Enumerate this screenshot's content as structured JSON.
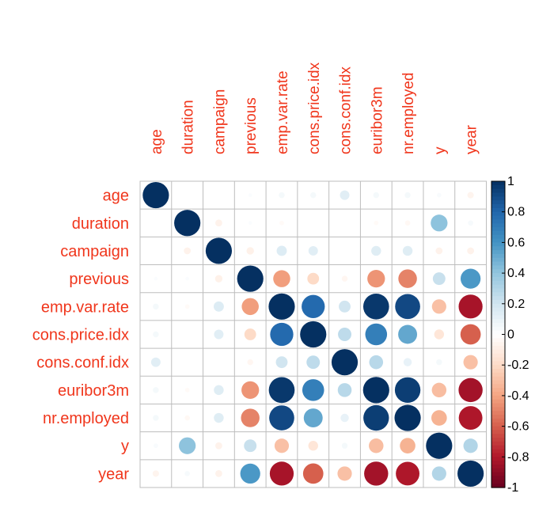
{
  "colors": {
    "label": "#f0361c",
    "grid": "#bdbdbd",
    "frame": "#000000",
    "scale": [
      "#67001f",
      "#b2182b",
      "#d6604d",
      "#f4a582",
      "#fddbc7",
      "#ffffff",
      "#d1e5f0",
      "#92c5de",
      "#4393c3",
      "#2166ac",
      "#053061"
    ]
  },
  "chart_data": {
    "type": "heatmap",
    "style": "circle correlation matrix",
    "variables": [
      "age",
      "duration",
      "campaign",
      "previous",
      "emp.var.rate",
      "cons.price.idx",
      "cons.conf.idx",
      "euribor3m",
      "nr.employed",
      "y",
      "year"
    ],
    "matrix": [
      [
        1.0,
        0.0,
        0.0,
        0.02,
        0.05,
        0.05,
        0.13,
        0.05,
        0.05,
        0.03,
        -0.06
      ],
      [
        0.0,
        1.0,
        -0.07,
        0.02,
        -0.03,
        0.0,
        0.0,
        -0.03,
        -0.04,
        0.41,
        0.04
      ],
      [
        0.0,
        -0.07,
        1.0,
        -0.08,
        0.15,
        0.13,
        0.0,
        0.14,
        0.14,
        -0.07,
        -0.07
      ],
      [
        0.02,
        0.02,
        -0.08,
        1.0,
        -0.42,
        -0.2,
        -0.05,
        -0.45,
        -0.5,
        0.23,
        0.58
      ],
      [
        0.05,
        -0.03,
        0.15,
        -0.42,
        1.0,
        0.78,
        0.2,
        0.97,
        0.91,
        -0.3,
        -0.83
      ],
      [
        0.05,
        0.0,
        0.13,
        -0.2,
        0.78,
        1.0,
        0.26,
        0.69,
        0.52,
        -0.14,
        -0.6
      ],
      [
        0.13,
        0.0,
        0.0,
        -0.05,
        0.2,
        0.26,
        1.0,
        0.28,
        0.1,
        0.05,
        -0.3
      ],
      [
        0.05,
        -0.03,
        0.14,
        -0.45,
        0.97,
        0.69,
        0.28,
        1.0,
        0.95,
        -0.31,
        -0.84
      ],
      [
        0.05,
        -0.04,
        0.14,
        -0.5,
        0.91,
        0.52,
        0.1,
        0.95,
        1.0,
        -0.35,
        -0.81
      ],
      [
        0.03,
        0.41,
        -0.07,
        0.23,
        -0.3,
        -0.14,
        0.05,
        -0.31,
        -0.35,
        1.0,
        0.3
      ],
      [
        -0.06,
        0.04,
        -0.07,
        0.58,
        -0.83,
        -0.6,
        -0.3,
        -0.84,
        -0.81,
        0.3,
        1.0
      ]
    ],
    "colorbar": {
      "range": [
        -1,
        1
      ],
      "ticks": [
        "1",
        "0.8",
        "0.6",
        "0.4",
        "0.2",
        "0",
        "-0.2",
        "-0.4",
        "-0.6",
        "-0.8",
        "-1"
      ]
    }
  }
}
